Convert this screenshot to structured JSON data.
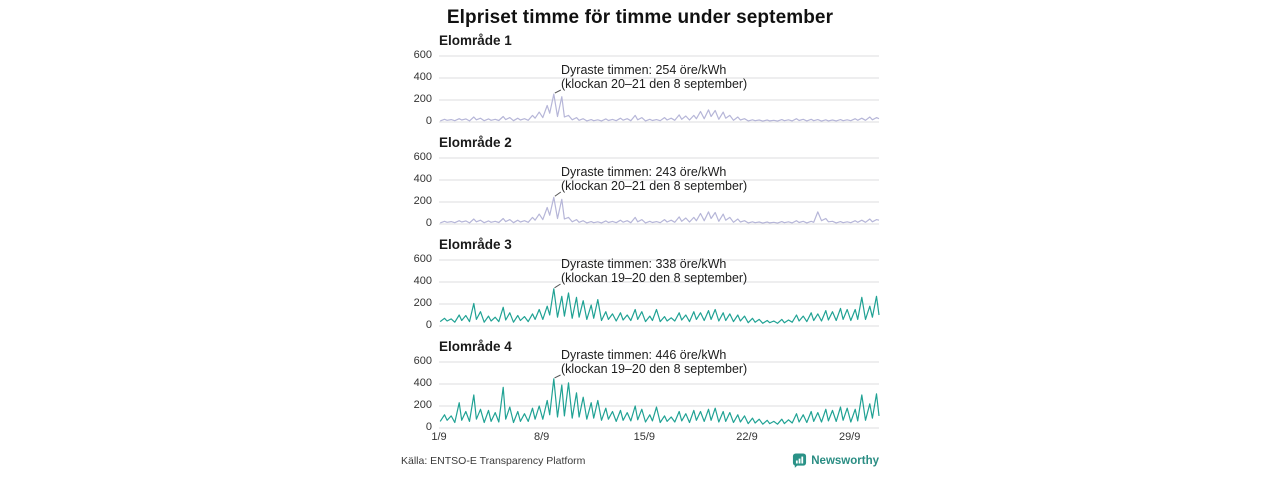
{
  "header": {
    "title": "Elpriset timme för timme under september"
  },
  "footer": {
    "source": "Källa: ENTSO-E Transparency Platform",
    "brand": "Newsworthy",
    "brand_color": "#2a8d83"
  },
  "colors": {
    "zone12_line": "#b6b6d8",
    "zone34_line": "#20a294",
    "grid": "#dcdcdf",
    "leader": "#555555"
  },
  "xaxis": {
    "ticks": [
      {
        "label": "1/9",
        "day": 1
      },
      {
        "label": "8/9",
        "day": 8
      },
      {
        "label": "15/9",
        "day": 15
      },
      {
        "label": "22/9",
        "day": 22
      },
      {
        "label": "29/9",
        "day": 29
      }
    ]
  },
  "chart_data": [
    {
      "type": "line",
      "title": "Elområde 1",
      "unit": "öre/kWh",
      "color": "#b6b6d8",
      "ylim": [
        0,
        600
      ],
      "yticks": [
        "600",
        "400",
        "200",
        "0"
      ],
      "x_range_days": [
        1,
        31
      ],
      "points_per_day": 4,
      "point_hours": [
        2,
        9,
        13,
        20
      ],
      "annotation": {
        "line1": "Dyraste timmen: 254 öre/kWh",
        "line2": "(klockan 20–21 den 8 september)",
        "value": 254,
        "day": 8.83
      },
      "values": [
        10,
        25,
        15,
        22,
        12,
        30,
        18,
        28,
        10,
        45,
        20,
        35,
        12,
        28,
        15,
        25,
        14,
        50,
        22,
        40,
        12,
        35,
        18,
        30,
        15,
        60,
        35,
        90,
        40,
        150,
        80,
        254,
        50,
        230,
        45,
        60,
        20,
        40,
        15,
        30,
        10,
        22,
        12,
        20,
        10,
        28,
        14,
        24,
        12,
        35,
        16,
        30,
        12,
        60,
        20,
        40,
        10,
        25,
        14,
        22,
        12,
        40,
        18,
        35,
        15,
        65,
        25,
        55,
        18,
        60,
        30,
        95,
        30,
        110,
        50,
        105,
        25,
        90,
        35,
        60,
        15,
        45,
        18,
        30,
        10,
        20,
        12,
        18,
        8,
        18,
        10,
        15,
        8,
        22,
        12,
        20,
        10,
        30,
        14,
        25,
        10,
        25,
        12,
        22,
        8,
        20,
        10,
        18,
        10,
        22,
        12,
        20,
        12,
        30,
        15,
        35,
        15,
        45,
        20,
        40,
        30
      ]
    },
    {
      "type": "line",
      "title": "Elområde 2",
      "unit": "öre/kWh",
      "color": "#b6b6d8",
      "ylim": [
        0,
        600
      ],
      "yticks": [
        "600",
        "400",
        "200",
        "0"
      ],
      "x_range_days": [
        1,
        31
      ],
      "points_per_day": 4,
      "point_hours": [
        2,
        9,
        13,
        20
      ],
      "annotation": {
        "line1": "Dyraste timmen: 243 öre/kWh",
        "line2": "(klockan 20–21 den 8 september)",
        "value": 243,
        "day": 8.83
      },
      "values": [
        10,
        25,
        15,
        22,
        12,
        30,
        18,
        28,
        10,
        45,
        20,
        35,
        12,
        28,
        15,
        25,
        14,
        50,
        22,
        40,
        12,
        35,
        18,
        30,
        15,
        60,
        35,
        90,
        40,
        150,
        80,
        243,
        50,
        225,
        45,
        60,
        20,
        40,
        15,
        30,
        10,
        22,
        12,
        20,
        10,
        28,
        14,
        24,
        12,
        35,
        16,
        30,
        12,
        60,
        20,
        40,
        10,
        25,
        14,
        22,
        12,
        40,
        18,
        35,
        15,
        65,
        25,
        55,
        18,
        60,
        30,
        95,
        30,
        110,
        50,
        105,
        25,
        90,
        35,
        60,
        15,
        45,
        18,
        30,
        10,
        20,
        12,
        18,
        8,
        18,
        10,
        15,
        8,
        22,
        12,
        20,
        10,
        30,
        14,
        25,
        10,
        25,
        15,
        110,
        30,
        50,
        20,
        25,
        10,
        22,
        12,
        20,
        12,
        30,
        15,
        35,
        15,
        45,
        20,
        40,
        35
      ]
    },
    {
      "type": "line",
      "title": "Elområde 3",
      "unit": "öre/kWh",
      "color": "#20a294",
      "ylim": [
        0,
        600
      ],
      "yticks": [
        "600",
        "400",
        "200",
        "0"
      ],
      "x_range_days": [
        1,
        31
      ],
      "points_per_day": 4,
      "point_hours": [
        2,
        9,
        13,
        20
      ],
      "annotation": {
        "line1": "Dyraste timmen: 338 öre/kWh",
        "line2": "(klockan 19–20 den 8 september)",
        "value": 338,
        "day": 8.81
      },
      "values": [
        40,
        70,
        45,
        65,
        35,
        100,
        50,
        95,
        40,
        205,
        60,
        130,
        35,
        90,
        45,
        80,
        40,
        170,
        55,
        120,
        35,
        95,
        50,
        85,
        40,
        110,
        60,
        150,
        60,
        180,
        100,
        338,
        80,
        270,
        90,
        300,
        70,
        260,
        80,
        230,
        60,
        190,
        70,
        240,
        50,
        130,
        60,
        110,
        45,
        120,
        55,
        100,
        50,
        150,
        60,
        130,
        40,
        90,
        50,
        150,
        40,
        85,
        45,
        75,
        45,
        120,
        55,
        100,
        40,
        130,
        60,
        120,
        50,
        140,
        60,
        150,
        45,
        120,
        50,
        110,
        40,
        100,
        45,
        90,
        30,
        70,
        35,
        60,
        25,
        50,
        30,
        45,
        25,
        60,
        30,
        55,
        35,
        100,
        45,
        90,
        40,
        120,
        50,
        110,
        45,
        140,
        55,
        130,
        50,
        160,
        60,
        150,
        50,
        150,
        60,
        260,
        60,
        180,
        80,
        270,
        100
      ]
    },
    {
      "type": "line",
      "title": "Elområde 4",
      "unit": "öre/kWh",
      "color": "#20a294",
      "ylim": [
        0,
        600
      ],
      "yticks": [
        "600",
        "400",
        "200",
        "0"
      ],
      "x_range_days": [
        1,
        31
      ],
      "points_per_day": 4,
      "point_hours": [
        2,
        9,
        13,
        20
      ],
      "annotation": {
        "line1": "Dyraste timmen: 446 öre/kWh",
        "line2": "(klockan 19–20 den 8 september)",
        "value": 446,
        "day": 8.81
      },
      "values": [
        60,
        120,
        70,
        110,
        50,
        230,
        70,
        150,
        60,
        300,
        80,
        170,
        50,
        160,
        60,
        140,
        55,
        370,
        80,
        190,
        50,
        150,
        60,
        130,
        60,
        180,
        80,
        200,
        80,
        250,
        120,
        446,
        100,
        390,
        110,
        410,
        90,
        320,
        100,
        280,
        80,
        230,
        90,
        250,
        70,
        180,
        80,
        150,
        60,
        160,
        70,
        140,
        65,
        200,
        75,
        170,
        55,
        120,
        65,
        190,
        50,
        110,
        60,
        100,
        55,
        150,
        65,
        130,
        50,
        160,
        70,
        150,
        60,
        170,
        70,
        180,
        55,
        150,
        60,
        140,
        50,
        120,
        55,
        110,
        40,
        90,
        45,
        80,
        35,
        70,
        40,
        60,
        35,
        80,
        40,
        75,
        45,
        130,
        55,
        120,
        50,
        150,
        60,
        140,
        55,
        170,
        65,
        160,
        60,
        190,
        70,
        180,
        55,
        170,
        65,
        300,
        70,
        220,
        90,
        310,
        110
      ]
    }
  ]
}
